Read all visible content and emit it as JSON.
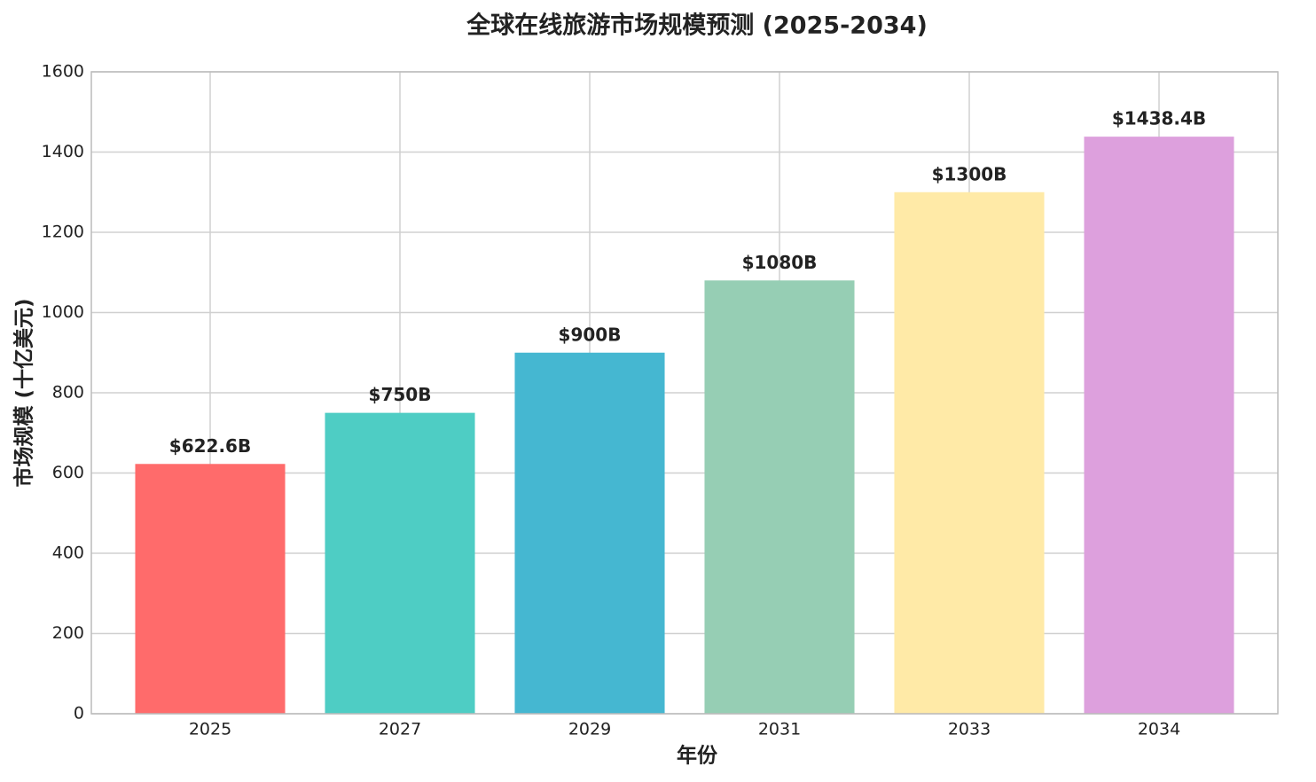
{
  "chart_data": {
    "type": "bar",
    "title": "全球在线旅游市场规模预测 (2025-2034)",
    "x_label": "年份",
    "y_label": "市场规模 (十亿美元)",
    "categories": [
      "2025",
      "2027",
      "2029",
      "2031",
      "2033",
      "2034"
    ],
    "values": [
      622.6,
      750,
      900,
      1080,
      1300,
      1438.4
    ],
    "value_labels": [
      "$622.6B",
      "$750B",
      "$900B",
      "$1080B",
      "$1300B",
      "$1438.4B"
    ],
    "colors": [
      "#ff6b6b",
      "#4ecdc4",
      "#45b7d1",
      "#96ceb4",
      "#ffeaa7",
      "#dda0dd"
    ],
    "ylim": [
      0,
      1600
    ],
    "yticks": [
      0,
      200,
      400,
      600,
      800,
      1000,
      1200,
      1400,
      1600
    ],
    "grid": true
  }
}
